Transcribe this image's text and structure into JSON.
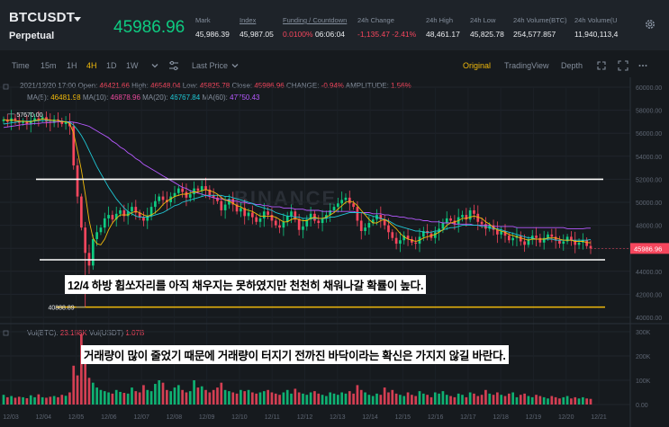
{
  "header": {
    "symbol": "BTCUSDT",
    "subtitle": "Perpetual",
    "last_price": "45986.96",
    "stats": [
      {
        "label": "Mark",
        "value": "45,986.39",
        "underline": false
      },
      {
        "label": "Index",
        "value": "45,987.05",
        "underline": true
      },
      {
        "label": "Funding / Countdown",
        "value_red": "0.0100%",
        "value": "06:06:04",
        "underline": true
      },
      {
        "label": "24h Change",
        "value": "-1,135.47 -2.41%",
        "red": true,
        "underline": false
      },
      {
        "label": "24h High",
        "value": "48,461.17",
        "underline": false
      },
      {
        "label": "24h Low",
        "value": "45,825.78",
        "underline": false
      },
      {
        "label": "24h Volume(BTC)",
        "value": "254,577.857",
        "underline": false
      },
      {
        "label": "24h Volume(U",
        "value": "11,940,113,4",
        "underline": false
      }
    ]
  },
  "toolbar": {
    "intervals": [
      "Time",
      "15m",
      "1H",
      "4H",
      "1D",
      "1W"
    ],
    "active_interval": "4H",
    "last_price_label": "Last Price",
    "views": [
      "Original",
      "TradingView",
      "Depth"
    ],
    "active_view": "Original"
  },
  "ohlc": {
    "date": "2021/12/20 17:00",
    "open_label": "Open:",
    "open": "46421.66",
    "high_label": "High:",
    "high": "46548.04",
    "low_label": "Low:",
    "low": "45825.78",
    "close_label": "Close:",
    "close": "45986.96",
    "change_label": "CHANGE:",
    "change": "-0.94%",
    "amplitude_label": "AMPLITUDE:",
    "amplitude": "1.56%"
  },
  "ma": {
    "ma5_label": "MA(5):",
    "ma5": "46481.98",
    "ma10_label": "MA(10):",
    "ma10": "46878.96",
    "ma20_label": "MA(20):",
    "ma20": "46767.84",
    "ma60_label": "MA(60):",
    "ma60": "47750.43"
  },
  "vol": {
    "btc_label": "Vol(BTC):",
    "btc": "23.198K",
    "usdt_label": "Vol(USDT)",
    "usdt": "1.07B"
  },
  "watermark": "BINANCE",
  "annotations": {
    "high_marker": "57670.00",
    "low_marker": "40888.89",
    "current_price_tag": "45986.96",
    "text1": "12/4 하방 휩쏘자리를 아직 채우지는 못하였지만 천천히 채워나갈 확률이 높다.",
    "text2": "거래량이 많이 줄었기 때문에 거래량이 터지기 전까진 바닥이라는 확신은 가지지 않길 바란다."
  },
  "colors": {
    "up": "#0ecb81",
    "down": "#f6465d",
    "accent": "#f0b90b",
    "ma5": "#f0b90b",
    "ma10": "#e8489a",
    "ma20": "#1fc7d4",
    "ma60": "#b659ff"
  },
  "chart_data": {
    "type": "candlestick",
    "price_axis": [
      "60000.00",
      "58000.00",
      "56000.00",
      "54000.00",
      "52000.00",
      "50000.00",
      "48000.00",
      "46000.00",
      "44000.00",
      "42000.00",
      "40000.00"
    ],
    "price_range": [
      40000,
      60000
    ],
    "volume_axis": [
      "300K",
      "200K",
      "100K",
      "0.00"
    ],
    "volume_range": [
      0,
      300000
    ],
    "dates": [
      "12/03",
      "12/04",
      "12/05",
      "12/06",
      "12/07",
      "12/08",
      "12/09",
      "12/10",
      "12/11",
      "12/12",
      "12/13",
      "12/14",
      "12/15",
      "12/16",
      "12/17",
      "12/18",
      "12/19",
      "12/20",
      "12/21"
    ],
    "closes": [
      57200,
      57000,
      57300,
      57100,
      56900,
      57050,
      56800,
      57100,
      57300,
      57200,
      57400,
      57000,
      56900,
      57200,
      57100,
      56800,
      57000,
      56600,
      53200,
      50500,
      47800,
      45600,
      44500,
      46800,
      47400,
      47800,
      48600,
      48900,
      48500,
      49000,
      49300,
      48800,
      49200,
      49600,
      49100,
      48700,
      48400,
      48800,
      49600,
      50100,
      50500,
      50200,
      50000,
      50500,
      50800,
      51200,
      50900,
      50400,
      50700,
      51200,
      51000,
      51400,
      51100,
      50600,
      50400,
      50100,
      49300,
      49800,
      50300,
      49800,
      49200,
      49500,
      48800,
      49100,
      48700,
      48300,
      48600,
      49200,
      48900,
      48400,
      48000,
      47800,
      48300,
      48800,
      49200,
      48500,
      47600,
      47900,
      48500,
      49000,
      48400,
      48200,
      48600,
      48900,
      49300,
      49600,
      49900,
      50200,
      50400,
      49900,
      49600,
      48400,
      47500,
      47800,
      48200,
      48500,
      48900,
      48500,
      48000,
      47400,
      46900,
      46400,
      46700,
      47100,
      46800,
      46500,
      46400,
      47000,
      47500,
      47300,
      46900,
      47400,
      47700,
      48200,
      48600,
      48400,
      48100,
      48700,
      48900,
      48500,
      49300,
      49000,
      48300,
      48100,
      47700,
      48000,
      47600,
      47200,
      47500,
      47100,
      46700,
      46900,
      47100,
      46600,
      46300,
      46800,
      47100,
      46900,
      46500,
      46900,
      47200,
      47000,
      46700,
      46400,
      46600,
      47000,
      46700,
      46300,
      46500,
      46700,
      46200,
      45987
    ],
    "ma5": [
      57200,
      57100,
      57150,
      57100,
      57050,
      57050,
      57000,
      57000,
      57100,
      57150,
      57250,
      57200,
      57150,
      57100,
      57100,
      57000,
      57000,
      56850,
      56000,
      54500,
      52800,
      50700,
      48400,
      46900,
      46400,
      46300,
      46800,
      47600,
      48200,
      48600,
      48900,
      48900,
      48900,
      49100,
      49200,
      49100,
      48900,
      48800,
      48900,
      49100,
      49400,
      49800,
      50100,
      50300,
      50500,
      50600,
      50700,
      50700,
      50800,
      50900,
      50900,
      51000,
      51100,
      51000,
      50900,
      50700,
      50400,
      50200,
      50100,
      49900,
      49700,
      49600,
      49400,
      49300,
      49200,
      49000,
      48800,
      48800,
      48800,
      48800,
      48700,
      48500,
      48300,
      48300,
      48500,
      48600,
      48500,
      48400,
      48400,
      48600,
      48700,
      48600,
      48600,
      48700,
      48900,
      49100,
      49400,
      49700,
      50000,
      50100,
      50000,
      49700,
      49300,
      48900,
      48500,
      48200,
      48200,
      48400,
      48500,
      48300,
      48000,
      47700,
      47300,
      47000,
      46800,
      46700,
      46600,
      46700,
      46900,
      47000,
      47100,
      47200,
      47400,
      47600,
      48000,
      48200,
      48300,
      48400,
      48600,
      48600,
      48700,
      48800,
      48700,
      48600,
      48300,
      48100,
      47800,
      47600,
      47500,
      47400,
      47200,
      47100,
      47000,
      46900,
      46800,
      46700,
      46800,
      46800,
      46800,
      46800,
      46900,
      46900,
      46900,
      46800,
      46700,
      46700,
      46700,
      46600,
      46600,
      46600,
      46500,
      46482
    ],
    "ma20": [
      56800,
      56850,
      56900,
      56950,
      57000,
      57050,
      57050,
      57050,
      57050,
      57100,
      57100,
      57100,
      57100,
      57100,
      57100,
      57050,
      57000,
      56950,
      56700,
      56300,
      55800,
      55200,
      54500,
      53800,
      53100,
      52500,
      51900,
      51300,
      50800,
      50300,
      49900,
      49500,
      49200,
      49000,
      48800,
      48700,
      48700,
      48700,
      48800,
      48900,
      49000,
      49100,
      49300,
      49500,
      49700,
      49800,
      50000,
      50100,
      50200,
      50300,
      50400,
      50500,
      50600,
      50600,
      50600,
      50600,
      50600,
      50500,
      50500,
      50400,
      50300,
      50200,
      50100,
      50000,
      49900,
      49700,
      49600,
      49500,
      49400,
      49300,
      49100,
      49000,
      48900,
      48800,
      48800,
      48700,
      48700,
      48600,
      48600,
      48600,
      48600,
      48600,
      48600,
      48600,
      48700,
      48700,
      48800,
      48900,
      49000,
      49100,
      49100,
      49100,
      49100,
      49000,
      48900,
      48800,
      48700,
      48600,
      48500,
      48400,
      48200,
      48000,
      47900,
      47800,
      47700,
      47600,
      47500,
      47500,
      47400,
      47400,
      47400,
      47500,
      47500,
      47600,
      47700,
      47800,
      47800,
      47900,
      48000,
      48000,
      48000,
      48000,
      48000,
      47900,
      47900,
      47800,
      47700,
      47700,
      47600,
      47500,
      47400,
      47300,
      47200,
      47100,
      47000,
      46900,
      46900,
      46800,
      46800,
      46800,
      46800,
      46800,
      46700,
      46700,
      46700,
      46700,
      46700,
      46700,
      46700,
      46700,
      46700,
      46768
    ],
    "ma60": [
      56500,
      56550,
      56600,
      56650,
      56700,
      56750,
      56800,
      56800,
      56850,
      56850,
      56900,
      56900,
      56950,
      56950,
      57000,
      57000,
      57000,
      57000,
      56950,
      56900,
      56800,
      56700,
      56600,
      56400,
      56200,
      56000,
      55800,
      55600,
      55300,
      55100,
      54800,
      54600,
      54300,
      54100,
      53800,
      53600,
      53300,
      53100,
      52900,
      52700,
      52500,
      52300,
      52100,
      51900,
      51700,
      51500,
      51300,
      51200,
      51000,
      50900,
      50800,
      50700,
      50600,
      50500,
      50400,
      50300,
      50300,
      50200,
      50200,
      50100,
      50100,
      50000,
      50000,
      49900,
      49900,
      49800,
      49800,
      49700,
      49700,
      49600,
      49600,
      49600,
      49500,
      49500,
      49500,
      49400,
      49400,
      49400,
      49300,
      49300,
      49300,
      49300,
      49200,
      49200,
      49200,
      49200,
      49200,
      49200,
      49200,
      49200,
      49200,
      49100,
      49100,
      49100,
      49100,
      49000,
      49000,
      49000,
      48900,
      48900,
      48800,
      48800,
      48700,
      48700,
      48600,
      48600,
      48500,
      48500,
      48400,
      48400,
      48300,
      48300,
      48300,
      48200,
      48200,
      48200,
      48100,
      48100,
      48100,
      48100,
      48100,
      48000,
      48000,
      48000,
      48000,
      48000,
      47900,
      47900,
      47900,
      47900,
      47900,
      47900,
      47800,
      47800,
      47800,
      47800,
      47800,
      47800,
      47800,
      47800,
      47800,
      47800,
      47800,
      47800,
      47800,
      47700,
      47700,
      47700,
      47700,
      47700,
      47750,
      47750
    ],
    "volumes": [
      40000,
      30000,
      35000,
      28000,
      32000,
      30000,
      26000,
      38000,
      30000,
      42000,
      30000,
      28000,
      32000,
      35000,
      30000,
      40000,
      36000,
      50000,
      160000,
      120000,
      290000,
      180000,
      110000,
      90000,
      70000,
      60000,
      55000,
      50000,
      45000,
      60000,
      52000,
      48000,
      45000,
      70000,
      55000,
      50000,
      80000,
      60000,
      55000,
      85000,
      100000,
      90000,
      60000,
      55000,
      70000,
      80000,
      60000,
      50000,
      55000,
      100000,
      70000,
      75000,
      60000,
      50000,
      60000,
      70000,
      90000,
      60000,
      55000,
      50000,
      45000,
      60000,
      55000,
      60000,
      50000,
      45000,
      50000,
      55000,
      60000,
      50000,
      45000,
      40000,
      50000,
      60000,
      45000,
      65000,
      50000,
      45000,
      40000,
      50000,
      55000,
      45000,
      40000,
      35000,
      50000,
      45000,
      40000,
      50000,
      45000,
      55000,
      45000,
      80000,
      60000,
      50000,
      40000,
      35000,
      45000,
      40000,
      70000,
      50000,
      60000,
      45000,
      40000,
      35000,
      50000,
      40000,
      35000,
      55000,
      45000,
      40000,
      30000,
      50000,
      45000,
      55000,
      40000,
      35000,
      30000,
      45000,
      40000,
      30000,
      50000,
      45000,
      35000,
      40000,
      60000,
      45000,
      40000,
      50000,
      40000,
      35000,
      45000,
      50000,
      30000,
      40000,
      45000,
      35000,
      30000,
      40000,
      35000,
      30000,
      25000,
      35000,
      30000,
      25000,
      30000,
      35000,
      25000,
      30000,
      25000,
      30000,
      25000,
      23198
    ]
  }
}
